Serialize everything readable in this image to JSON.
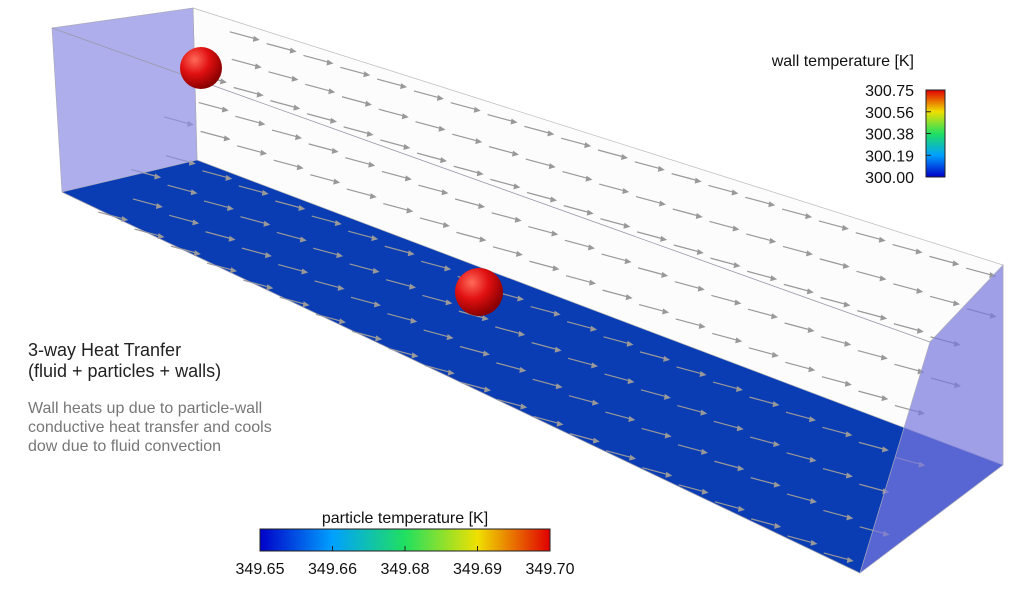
{
  "annotation": {
    "title_lines": [
      "3-way Heat Tranfer",
      "(fluid + particles + walls)"
    ],
    "description_lines": [
      "Wall heats up due to particle-wall",
      "conductive heat transfer and cools",
      "dow due to fluid convection"
    ]
  },
  "wall_legend": {
    "title": "wall temperature [K]",
    "ticks": [
      "300.75",
      "300.56",
      "300.38",
      "300.19",
      "300.00"
    ]
  },
  "particle_legend": {
    "title": "particle temperature [K]",
    "ticks": [
      "349.65",
      "349.66",
      "349.68",
      "349.69",
      "349.70"
    ]
  }
}
